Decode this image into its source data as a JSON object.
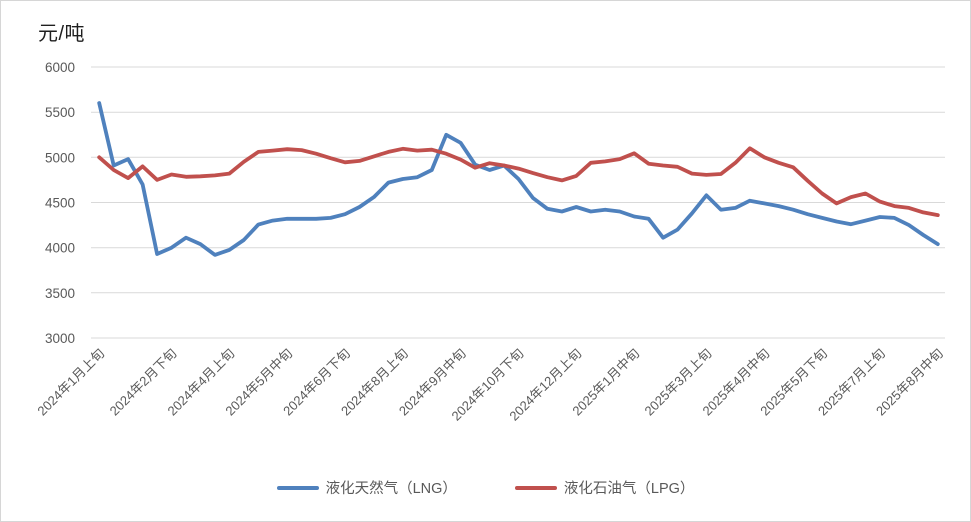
{
  "chart": {
    "unit_label": "元/吨",
    "legend": [
      {
        "name": "液化天然气（LNG）",
        "color": "#4F81BD"
      },
      {
        "name": "液化石油气（LPG）",
        "color": "#C0504D"
      }
    ],
    "chart_data": {
      "type": "line",
      "title": "",
      "ylabel": "元/吨",
      "xlabel": "",
      "ylim": [
        3000,
        6000
      ],
      "yticks": [
        3000,
        3500,
        4000,
        4500,
        5000,
        5500,
        6000
      ],
      "grid": true,
      "legend_position": "bottom",
      "n_points": 59,
      "x_tick_indices": [
        0,
        5,
        9,
        13,
        17,
        21,
        25,
        29,
        33,
        37,
        42,
        46,
        50,
        54,
        58
      ],
      "x_tick_labels": [
        "2024年1月上旬",
        "2024年2月下旬",
        "2024年4月上旬",
        "2024年5月中旬",
        "2024年6月下旬",
        "2024年8月上旬",
        "2024年9月中旬",
        "2024年10月下旬",
        "2024年12月上旬",
        "2025年1月中旬",
        "2025年3月上旬",
        "2025年4月中旬",
        "2025年5月下旬",
        "2025年7月上旬",
        "2025年8月中旬"
      ],
      "series": [
        {
          "name": "液化天然气（LNG）",
          "color": "#4F81BD",
          "values": [
            5600,
            4910,
            4980,
            4700,
            3930,
            4000,
            4110,
            4040,
            3920,
            3975,
            4085,
            4255,
            4300,
            4320,
            4320,
            4320,
            4330,
            4370,
            4450,
            4560,
            4720,
            4760,
            4780,
            4860,
            5250,
            5160,
            4920,
            4860,
            4910,
            4760,
            4550,
            4430,
            4400,
            4450,
            4400,
            4420,
            4400,
            4345,
            4320,
            4110,
            4200,
            4380,
            4580,
            4420,
            4440,
            4520,
            4490,
            4460,
            4420,
            4370,
            4330,
            4290,
            4260,
            4300,
            4340,
            4330,
            4250,
            4140,
            4040
          ]
        },
        {
          "name": "液化石油气（LPG）",
          "color": "#C0504D",
          "values": [
            5000,
            4860,
            4770,
            4900,
            4750,
            4810,
            4785,
            4790,
            4800,
            4820,
            4950,
            5060,
            5075,
            5090,
            5080,
            5040,
            4990,
            4945,
            4960,
            5010,
            5060,
            5095,
            5075,
            5085,
            5040,
            4975,
            4885,
            4935,
            4910,
            4875,
            4825,
            4780,
            4745,
            4795,
            4940,
            4955,
            4980,
            5045,
            4930,
            4910,
            4895,
            4820,
            4805,
            4815,
            4940,
            5100,
            5000,
            4940,
            4890,
            4740,
            4600,
            4490,
            4560,
            4600,
            4510,
            4460,
            4440,
            4390,
            4360
          ]
        }
      ],
      "gridline_color": "#D9D9D9"
    }
  }
}
